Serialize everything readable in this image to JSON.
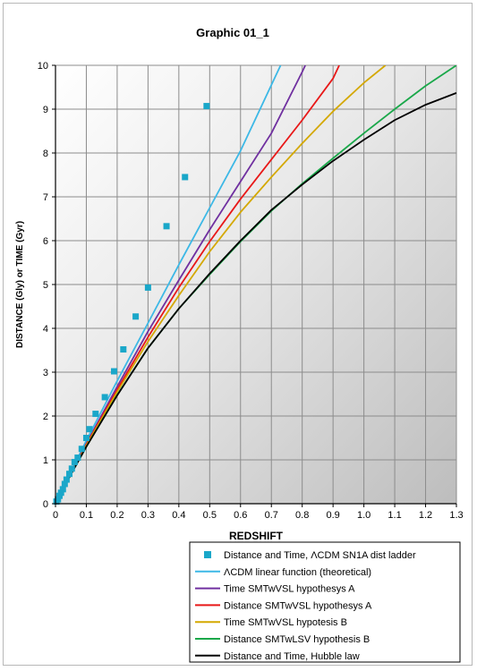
{
  "chart_data": {
    "type": "line",
    "title": "Graphic 01_1",
    "xlabel": "REDSHIFT",
    "ylabel": "DISTANCE (Gly) or TIME (Gyr)",
    "xlim": [
      0,
      1.3
    ],
    "ylim": [
      0,
      10
    ],
    "x_ticks": [
      "0",
      "0.1",
      "0.2",
      "0.3",
      "0.4",
      "0.5",
      "0.6",
      "0.7",
      "0.8",
      "0.9",
      "1.0",
      "1.1",
      "1.2",
      "1.3"
    ],
    "y_ticks": [
      "0",
      "1",
      "2",
      "3",
      "4",
      "5",
      "6",
      "7",
      "8",
      "9",
      "10"
    ],
    "grid": true,
    "legend_position": "bottom-right",
    "series": [
      {
        "name": "Distance and Time, ΛCDM SN1A dist ladder",
        "kind": "scatter",
        "color": "#1aa7c9",
        "x": [
          0.003,
          0.008,
          0.013,
          0.018,
          0.024,
          0.03,
          0.036,
          0.045,
          0.053,
          0.062,
          0.072,
          0.085,
          0.1,
          0.11,
          0.13,
          0.16,
          0.19,
          0.22,
          0.26,
          0.3,
          0.36,
          0.42,
          0.49
        ],
        "y": [
          0.05,
          0.1,
          0.18,
          0.25,
          0.33,
          0.45,
          0.55,
          0.68,
          0.8,
          0.95,
          1.05,
          1.25,
          1.5,
          1.7,
          2.05,
          2.43,
          3.02,
          3.52,
          4.27,
          4.93,
          6.33,
          7.45,
          9.07
        ]
      },
      {
        "name": "ΛCDM linear function (theoretical)",
        "kind": "line",
        "color": "#3cb8e6",
        "x": [
          0,
          0.05,
          0.1,
          0.2,
          0.3,
          0.4,
          0.5,
          0.6,
          0.7,
          0.73
        ],
        "y": [
          0,
          0.72,
          1.44,
          2.8,
          4.12,
          5.45,
          6.75,
          8.05,
          9.55,
          10.0
        ]
      },
      {
        "name": "Time SMTwVSL hypothesys A",
        "kind": "line",
        "color": "#7030a0",
        "x": [
          0,
          0.05,
          0.1,
          0.2,
          0.3,
          0.4,
          0.5,
          0.6,
          0.7,
          0.8,
          0.81
        ],
        "y": [
          0,
          0.7,
          1.37,
          2.67,
          3.93,
          5.1,
          6.25,
          7.35,
          8.45,
          9.85,
          10.0
        ]
      },
      {
        "name": "Distance SMTwVSL hypothesys A",
        "kind": "line",
        "color": "#e81818",
        "x": [
          0,
          0.05,
          0.1,
          0.2,
          0.3,
          0.4,
          0.5,
          0.6,
          0.7,
          0.8,
          0.9,
          0.92
        ],
        "y": [
          0,
          0.69,
          1.35,
          2.6,
          3.8,
          4.93,
          5.98,
          6.95,
          7.85,
          8.75,
          9.7,
          10.0
        ]
      },
      {
        "name": "Time SMTwVSL hypotesis B",
        "kind": "line",
        "color": "#d4a800",
        "x": [
          0,
          0.05,
          0.1,
          0.2,
          0.3,
          0.4,
          0.5,
          0.6,
          0.7,
          0.8,
          0.9,
          1.0,
          1.07
        ],
        "y": [
          0,
          0.68,
          1.33,
          2.55,
          3.7,
          4.75,
          5.75,
          6.65,
          7.45,
          8.22,
          8.95,
          9.6,
          10.0
        ]
      },
      {
        "name": "Distance SMTwLSV hypothesis B",
        "kind": "line",
        "color": "#1aa84a",
        "x": [
          0,
          0.05,
          0.1,
          0.2,
          0.3,
          0.4,
          0.5,
          0.6,
          0.7,
          0.8,
          0.9,
          1.0,
          1.1,
          1.2,
          1.3
        ],
        "y": [
          0,
          0.67,
          1.3,
          2.48,
          3.55,
          4.45,
          5.23,
          5.98,
          6.68,
          7.3,
          7.88,
          8.45,
          9.0,
          9.53,
          10.0
        ]
      },
      {
        "name": "Distance and Time, Hubble law",
        "kind": "line",
        "color": "#000000",
        "x": [
          0,
          0.05,
          0.1,
          0.2,
          0.3,
          0.4,
          0.5,
          0.6,
          0.7,
          0.8,
          0.9,
          1.0,
          1.1,
          1.2,
          1.3
        ],
        "y": [
          0,
          0.67,
          1.3,
          2.47,
          3.55,
          4.45,
          5.25,
          6.0,
          6.7,
          7.28,
          7.82,
          8.3,
          8.75,
          9.1,
          9.37
        ]
      }
    ]
  }
}
